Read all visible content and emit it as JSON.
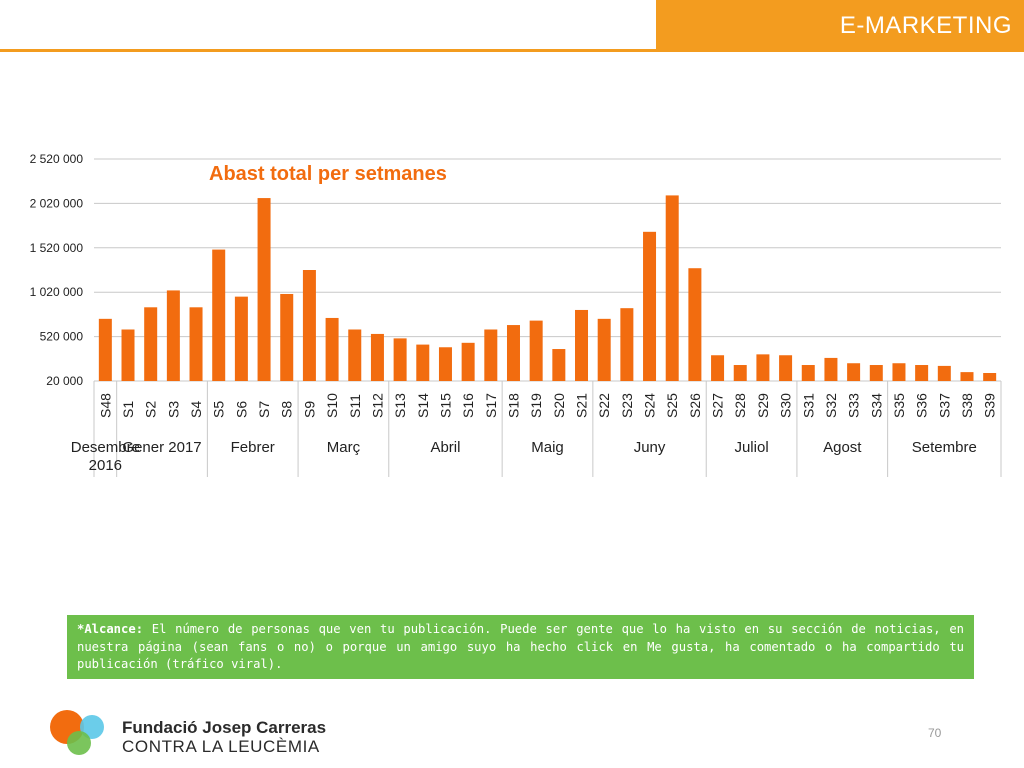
{
  "header": {
    "title": "E-MARKETING"
  },
  "chart_data": {
    "type": "bar",
    "title": "Abast total per setmanes",
    "bar_color": "#f26c0f",
    "y_ticks": [
      "2 520 000",
      "2 020 000",
      "1 520 000",
      "1 020 000",
      "520 000",
      "20 000"
    ],
    "y_tick_values": [
      2520000,
      2020000,
      1520000,
      1020000,
      520000,
      20000
    ],
    "ylim": [
      20000,
      2520000
    ],
    "grid": true,
    "categories": [
      "S48",
      "S1",
      "S2",
      "S3",
      "S4",
      "S5",
      "S6",
      "S7",
      "S8",
      "S9",
      "S10",
      "S11",
      "S12",
      "S13",
      "S14",
      "S15",
      "S16",
      "S17",
      "S18",
      "S19",
      "S20",
      "S21",
      "S22",
      "S23",
      "S24",
      "S25",
      "S26",
      "S27",
      "S28",
      "S29",
      "S30",
      "S31",
      "S32",
      "S33",
      "S34",
      "S35",
      "S36",
      "S37",
      "S38",
      "S39"
    ],
    "values": [
      720000,
      600000,
      850000,
      1040000,
      850000,
      1500000,
      970000,
      2080000,
      1000000,
      1270000,
      730000,
      600000,
      550000,
      500000,
      430000,
      400000,
      450000,
      600000,
      650000,
      700000,
      380000,
      820000,
      720000,
      840000,
      1700000,
      2110000,
      1290000,
      310000,
      200000,
      320000,
      310000,
      200000,
      280000,
      220000,
      200000,
      220000,
      200000,
      190000,
      120000,
      110000
    ],
    "groups": [
      {
        "label": "Desembre 2016",
        "start": 0,
        "count": 1
      },
      {
        "label": "Gener 2017",
        "start": 1,
        "count": 4
      },
      {
        "label": "Febrer",
        "start": 5,
        "count": 4
      },
      {
        "label": "Març",
        "start": 9,
        "count": 4
      },
      {
        "label": "Abril",
        "start": 13,
        "count": 5
      },
      {
        "label": "Maig",
        "start": 18,
        "count": 4
      },
      {
        "label": "Juny",
        "start": 22,
        "count": 5
      },
      {
        "label": "Juliol",
        "start": 27,
        "count": 4
      },
      {
        "label": "Agost",
        "start": 31,
        "count": 4
      },
      {
        "label": "Setembre",
        "start": 35,
        "count": 5
      }
    ]
  },
  "note": {
    "term": "*Alcance:",
    "text": " El número de personas que ven tu publicación. Puede ser gente que lo ha visto en su sección de noticias, en nuestra página (sean fans o no) o porque un amigo suyo ha hecho click en Me gusta, ha comentado o ha compartido tu publicación (tráfico viral)."
  },
  "footer": {
    "org_name": "Fundació Josep Carreras",
    "org_sub": "CONTRA LA LEUCÈMIA",
    "page_number": "70"
  }
}
